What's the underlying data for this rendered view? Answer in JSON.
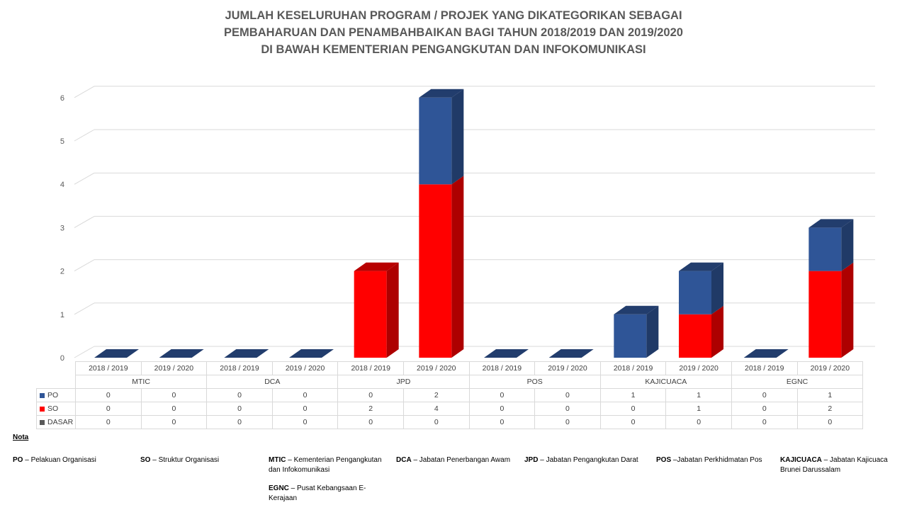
{
  "title_lines": [
    "JUMLAH KESELURUHAN PROGRAM / PROJEK YANG DIKATEGORIKAN SEBAGAI",
    "PEMBAHARUAN DAN PENAMBAHBAIKAN BAGI TAHUN 2018/2019 DAN 2019/2020",
    "DI BAWAH KEMENTERIAN PENGANGKUTAN DAN INFOKOMUNIKASI"
  ],
  "chart_data": {
    "type": "bar",
    "stacked": true,
    "three_d": true,
    "title": "JUMLAH KESELURUHAN PROGRAM / PROJEK YANG DIKATEGORIKAN SEBAGAI PEMBAHARUAN DAN PENAMBAHBAIKAN BAGI TAHUN 2018/2019 DAN 2019/2020 DI BAWAH KEMENTERIAN PENGANGKUTAN DAN INFOKOMUNIKASI",
    "groups": [
      "MTIC",
      "DCA",
      "JPD",
      "POS",
      "KAJICUACA",
      "EGNC"
    ],
    "subcategories": [
      "2018 / 2019",
      "2019 / 2020"
    ],
    "categories": [
      "2018 / 2019",
      "2019 / 2020",
      "2018 / 2019",
      "2019 / 2020",
      "2018 / 2019",
      "2019 / 2020",
      "2018 / 2019",
      "2019 / 2020",
      "2018 / 2019",
      "2019 / 2020",
      "2018 / 2019",
      "2019 / 2020"
    ],
    "series": [
      {
        "name": "PO",
        "color": "#2f5597",
        "values": [
          0,
          0,
          0,
          0,
          0,
          2,
          0,
          0,
          1,
          1,
          0,
          1
        ]
      },
      {
        "name": "SO",
        "color": "#ff0000",
        "values": [
          0,
          0,
          0,
          0,
          2,
          4,
          0,
          0,
          0,
          1,
          0,
          2
        ]
      },
      {
        "name": "DASAR",
        "color": "#595959",
        "values": [
          0,
          0,
          0,
          0,
          0,
          0,
          0,
          0,
          0,
          0,
          0,
          0
        ]
      }
    ],
    "yticks": [
      0,
      1,
      2,
      3,
      4,
      5,
      6
    ],
    "ylim": [
      0,
      6
    ],
    "grid": true,
    "data_table": true
  },
  "notes": {
    "heading": "Nota",
    "items": [
      {
        "abbr": "PO",
        "text": " – Pelakuan Organisasi"
      },
      {
        "abbr": "SO",
        "text": " – Struktur Organisasi"
      },
      {
        "abbr": "MTIC",
        "text": " – Kementerian Pengangkutan dan Infokomunikasi"
      },
      {
        "abbr": "DCA",
        "text": " – Jabatan Penerbangan Awam"
      },
      {
        "abbr": "JPD",
        "text": " – Jabatan Pengangkutan Darat"
      },
      {
        "abbr": "POS",
        "text": " –Jabatan Perkhidmatan Pos"
      },
      {
        "abbr": "KAJICUACA",
        "text": " – Jabatan Kajicuaca Brunei Darussalam"
      },
      {
        "abbr": "EGNC",
        "text": " – Pusat Kebangsaan E-Kerajaan"
      }
    ]
  }
}
